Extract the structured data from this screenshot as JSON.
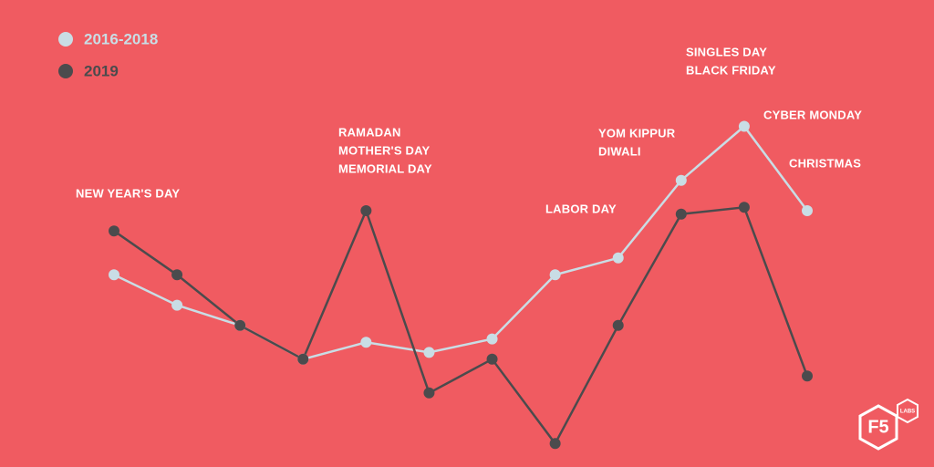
{
  "chart_data": {
    "type": "line",
    "categories": [
      null,
      null,
      null,
      null,
      null,
      null,
      null,
      null,
      null,
      null,
      null,
      null
    ],
    "series": [
      {
        "name": "2016-2018",
        "color": "#c9dde5",
        "values": [
          51,
          42,
          36,
          26,
          31,
          28,
          32,
          51,
          56,
          79,
          95,
          70
        ]
      },
      {
        "name": "2019",
        "color": "#4b4b4d",
        "values": [
          64,
          51,
          36,
          26,
          70,
          16,
          26,
          1,
          36,
          69,
          71,
          21
        ]
      }
    ],
    "ylim": [
      0,
      100
    ],
    "annotations": [
      [
        "NEW YEAR'S DAY"
      ],
      [
        "RAMADAN",
        "MOTHER'S DAY",
        "MEMORIAL DAY"
      ],
      [
        "LABOR DAY"
      ],
      [
        "YOM KIPPUR",
        "DIWALI"
      ],
      [
        "SINGLES DAY",
        "BLACK FRIDAY"
      ],
      [
        "CYBER MONDAY"
      ],
      [
        "CHRISTMAS"
      ]
    ],
    "logo": {
      "text": "F5",
      "badge": "LABS"
    }
  }
}
